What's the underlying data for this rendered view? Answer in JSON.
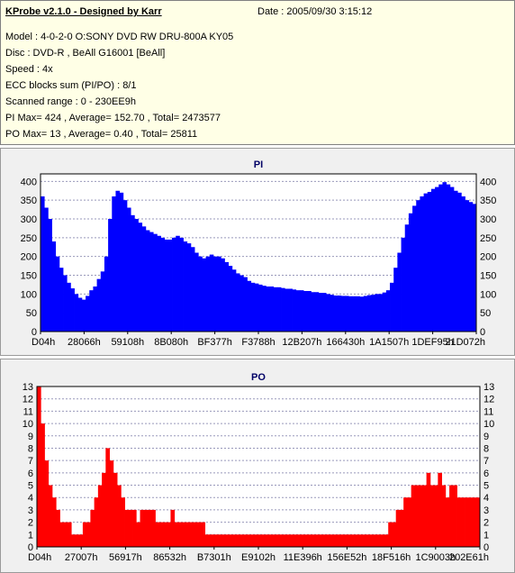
{
  "info": {
    "title": "KProbe v2.1.0 - Designed by Karr",
    "date": "Date : 2005/09/30 3:15:12",
    "lines": [
      "Model : 4-0-2-0 O:SONY    DVD RW DRU-800A  KY05",
      "Disc : DVD-R , BeAll G16001 [BeAll]",
      "Speed : 4x",
      "ECC blocks sum (PI/PO) : 8/1",
      "Scanned range : 0 - 230EE9h",
      "PI Max= 424 , Average= 152.70 , Total= 2473577",
      "PO Max= 13 , Average= 0.40 , Total= 25811"
    ]
  },
  "chart_data": [
    {
      "type": "area",
      "title": "PI",
      "xlabel": "",
      "ylabel": "",
      "ylim": [
        0,
        420
      ],
      "yticks": [
        0,
        50,
        100,
        150,
        200,
        250,
        300,
        350,
        400
      ],
      "xticks": [
        "D04h",
        "28066h",
        "59108h",
        "8B080h",
        "BF377h",
        "F3788h",
        "12B207h",
        "166430h",
        "1A1507h",
        "1DEF95h",
        "21D072h"
      ],
      "grid": true,
      "color": "#0000ff",
      "series": [
        {
          "values": [
            360,
            330,
            300,
            240,
            200,
            170,
            150,
            130,
            115,
            100,
            90,
            85,
            95,
            110,
            120,
            140,
            160,
            200,
            300,
            360,
            375,
            370,
            350,
            330,
            310,
            300,
            290,
            280,
            270,
            265,
            260,
            255,
            250,
            245,
            245,
            250,
            255,
            250,
            240,
            235,
            225,
            210,
            200,
            195,
            200,
            205,
            200,
            200,
            195,
            185,
            175,
            165,
            155,
            150,
            145,
            135,
            130,
            128,
            125,
            122,
            120,
            120,
            118,
            118,
            116,
            114,
            114,
            112,
            110,
            110,
            108,
            108,
            105,
            105,
            103,
            103,
            100,
            98,
            96,
            96,
            95,
            95,
            94,
            94,
            94,
            93,
            95,
            97,
            98,
            100,
            100,
            104,
            110,
            130,
            170,
            210,
            250,
            285,
            315,
            335,
            350,
            360,
            368,
            372,
            380,
            385,
            392,
            398,
            392,
            385,
            375,
            370,
            360,
            350,
            345,
            340
          ]
        }
      ]
    },
    {
      "type": "bar",
      "title": "PO",
      "xlabel": "",
      "ylabel": "",
      "ylim": [
        0,
        13
      ],
      "yticks": [
        0,
        1,
        2,
        3,
        4,
        5,
        6,
        7,
        8,
        9,
        10,
        11,
        12,
        13
      ],
      "xticks": [
        "D04h",
        "27007h",
        "56917h",
        "86532h",
        "B7301h",
        "E9102h",
        "11E396h",
        "156E52h",
        "18F516h",
        "1C9003h",
        "202E61h"
      ],
      "grid": true,
      "color": "#ff0000",
      "series": [
        {
          "values": [
            13,
            10,
            7,
            5,
            4,
            3,
            2,
            2,
            2,
            1,
            1,
            1,
            2,
            2,
            3,
            4,
            5,
            6,
            8,
            7,
            6,
            5,
            4,
            3,
            3,
            3,
            2,
            3,
            3,
            3,
            3,
            2,
            2,
            2,
            2,
            3,
            2,
            2,
            2,
            2,
            2,
            2,
            2,
            2,
            1,
            1,
            1,
            1,
            1,
            1,
            1,
            1,
            1,
            1,
            1,
            1,
            1,
            1,
            1,
            1,
            1,
            1,
            1,
            1,
            1,
            1,
            1,
            1,
            1,
            1,
            1,
            1,
            1,
            1,
            1,
            1,
            1,
            1,
            1,
            1,
            1,
            1,
            1,
            1,
            1,
            1,
            1,
            1,
            1,
            1,
            1,
            1,
            2,
            2,
            3,
            3,
            4,
            4,
            5,
            5,
            5,
            5,
            6,
            5,
            5,
            6,
            5,
            4,
            5,
            5,
            4,
            4,
            4,
            4,
            4,
            4
          ]
        }
      ]
    }
  ]
}
